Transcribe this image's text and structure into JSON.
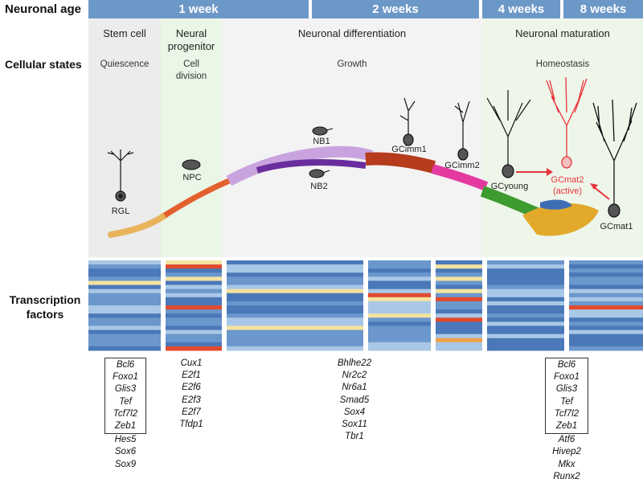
{
  "row_headers": {
    "age": "Neuronal age",
    "states": "Cellular states",
    "tf": "Transcription factors"
  },
  "ages": [
    "1 week",
    "2 weeks",
    "4 weeks",
    "8 weeks"
  ],
  "stages": {
    "stem": "Stem cell",
    "progenitor": "Neural progenitor",
    "differentiation": "Neuronal differentiation",
    "maturation": "Neuronal maturation"
  },
  "processes": {
    "quiescence": "Quiescence",
    "division": "Cell division",
    "growth": "Growth",
    "homeostasis": "Homeostasis"
  },
  "cells": {
    "rgl": "RGL",
    "npc": "NPC",
    "nb1": "NB1",
    "nb2": "NB2",
    "gcimm1": "GCimm1",
    "gcimm2": "GCimm2",
    "gcyoung": "GCyoung",
    "gcmat2": "GCmat2",
    "gcmat2_note": "(active)",
    "gcmat1": "GCmat1"
  },
  "colors": {
    "age_band": "#6c98c8",
    "stem_bg": "#ececec",
    "progenitor_bg": "#eaf6e6",
    "active_red": "#e8323a"
  },
  "tf_lists": {
    "stem_boxed": [
      "Bcl6",
      "Foxo1",
      "Glis3",
      "Tef",
      "Tcf7l2",
      "Zeb1"
    ],
    "stem_other": [
      "Hes5",
      "Sox6",
      "Sox9"
    ],
    "progenitor": [
      "Cux1",
      "E2f1",
      "E2f6",
      "E2f3",
      "E2f7",
      "Tfdp1"
    ],
    "differentiation": [
      "Bhlhe22",
      "Nr2c2",
      "Nr6a1",
      "Smad5",
      "Sox4",
      "Sox11",
      "Tbr1"
    ],
    "maturation_boxed": [
      "Bcl6",
      "Foxo1",
      "Glis3",
      "Tef",
      "Tcf7l2",
      "Zeb1"
    ],
    "maturation_other": [
      "Atf6",
      "Hivep2",
      "Mkx",
      "Runx2"
    ]
  }
}
